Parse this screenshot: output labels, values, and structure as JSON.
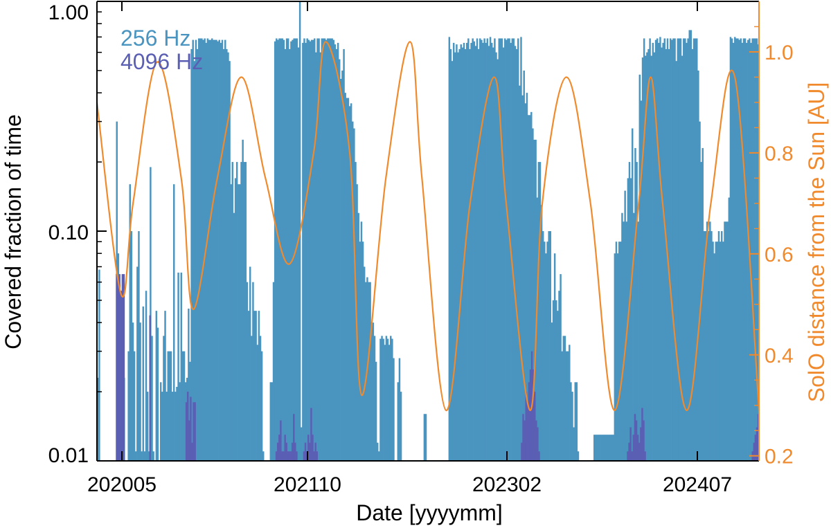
{
  "colors": {
    "series_256": "#4a94c0",
    "series_4096": "#5b5fb4",
    "distance": "#f08a2c",
    "axis": "#000000"
  },
  "chart_data": {
    "type": "bar",
    "xlabel": "Date [yyyymm]",
    "ylabel": "Covered fraction of time",
    "y_scale": "log",
    "ylim": [
      0.01,
      1.0
    ],
    "y_ticks": [
      0.01,
      0.1,
      1.0
    ],
    "y_tick_labels": [
      "0.01",
      "0.10",
      "1.00"
    ],
    "x_ticks": [
      "202005",
      "202110",
      "202302",
      "202407"
    ],
    "x_range": [
      "2020-03",
      "2024-10"
    ],
    "right_axis": {
      "label": "SolO distance from the Sun [AU]",
      "ylim": [
        0.19,
        1.1
      ],
      "ticks": [
        0.2,
        0.4,
        0.6,
        0.8,
        1.0
      ],
      "tick_labels": [
        "0.2",
        "0.4",
        "0.6",
        "0.8",
        "1.0"
      ]
    },
    "legend": {
      "placement": "top-left",
      "entries": [
        "256 Hz",
        "4096 Hz"
      ]
    },
    "series": [
      {
        "name": "256 Hz",
        "kind": "bar",
        "values": [
          0.023,
          0.068,
          0.0,
          0.0,
          0.0,
          0.0,
          0.0,
          0.0,
          0.0,
          0.0,
          0.0,
          0.0,
          0.0,
          0.3,
          0.08,
          0.014,
          0.035,
          0.023,
          0.023,
          0.0,
          0.0,
          0.03,
          0.16,
          0.1,
          0.04,
          0.03,
          0.011,
          0.07,
          0.1,
          0.04,
          0.011,
          0.047,
          0.011,
          0.055,
          0.02,
          0.011,
          0.19,
          0.035,
          0.011,
          0.0,
          0.045,
          0.038,
          0.0,
          0.022,
          0.02,
          0.035,
          0.045,
          0.02,
          0.03,
          0.03,
          0.03,
          0.02,
          0.16,
          0.02,
          0.021,
          0.066,
          0.022,
          0.066,
          0.03,
          0.03,
          0.022,
          0.023,
          0.046,
          0.027,
          0.62,
          0.68,
          0.55,
          0.68,
          0.62,
          0.69,
          0.69,
          0.69,
          0.68,
          0.69,
          0.66,
          0.69,
          0.68,
          0.68,
          0.69,
          0.68,
          0.68,
          0.68,
          0.67,
          0.68,
          0.66,
          0.68,
          0.62,
          0.68,
          0.62,
          0.6,
          0.55,
          0.16,
          0.2,
          0.12,
          0.17,
          0.2,
          0.16,
          0.16,
          0.2,
          0.25,
          0.2,
          0.2,
          0.06,
          0.045,
          0.07,
          0.035,
          0.06,
          0.045,
          0.045,
          0.032,
          0.045,
          0.035,
          0.03,
          0.011,
          0.0,
          0.0,
          0.0,
          0.0,
          0.022,
          0.022,
          0.06,
          0.67,
          0.69,
          0.68,
          0.69,
          0.69,
          0.69,
          0.68,
          0.62,
          0.69,
          0.69,
          0.62,
          0.67,
          0.68,
          0.69,
          0.69,
          0.69,
          0.63,
          1.0,
          0.014,
          0.66,
          0.69,
          0.66,
          0.69,
          0.68,
          0.67,
          0.68,
          0.68,
          0.69,
          0.6,
          0.69,
          0.69,
          0.6,
          0.69,
          0.69,
          0.69,
          0.68,
          0.69,
          0.69,
          0.69,
          0.69,
          0.68,
          0.65,
          0.62,
          0.66,
          0.56,
          0.46,
          0.5,
          0.62,
          0.4,
          0.38,
          0.38,
          0.35,
          0.36,
          0.3,
          0.28,
          0.2,
          0.16,
          0.12,
          0.09,
          0.11,
          0.09,
          0.07,
          0.06,
          0.063,
          0.06,
          0.06,
          0.04,
          0.04,
          0.035,
          0.027,
          0.012,
          0.011,
          0.034,
          0.035,
          0.034,
          0.032,
          0.035,
          0.034,
          0.032,
          0.035,
          0.034,
          0.028,
          0.0,
          0.0,
          0.022,
          0.028,
          0.02,
          0.0,
          0.0,
          0.0,
          0.0,
          0.0,
          0.0,
          0.0,
          0.0,
          0.0,
          0.0,
          0.0,
          0.0,
          0.0,
          0.0,
          0.0,
          0.016,
          0.016,
          0.0,
          0.0,
          0.0,
          0.0,
          0.0,
          0.0,
          0.0,
          0.0,
          0.0,
          0.0,
          0.0,
          0.0,
          0.0,
          0.0,
          0.0,
          0.7,
          0.62,
          0.55,
          0.66,
          0.6,
          0.65,
          0.6,
          0.62,
          0.65,
          0.63,
          0.66,
          0.62,
          0.66,
          0.69,
          0.62,
          0.66,
          0.69,
          0.67,
          0.64,
          0.69,
          0.62,
          0.69,
          0.68,
          0.66,
          0.69,
          0.66,
          0.69,
          0.64,
          0.7,
          0.66,
          0.63,
          0.69,
          0.6,
          0.56,
          0.69,
          0.69,
          0.69,
          0.63,
          0.69,
          0.68,
          0.69,
          0.69,
          0.66,
          0.69,
          0.69,
          0.64,
          0.62,
          0.69,
          0.43,
          0.7,
          0.39,
          0.5,
          0.36,
          0.4,
          0.32,
          0.32,
          0.33,
          0.28,
          0.25,
          0.25,
          0.14,
          0.2,
          0.2,
          0.13,
          0.1,
          0.09,
          0.08,
          0.09,
          0.1,
          0.1,
          0.04,
          0.05,
          0.08,
          0.05,
          0.045,
          0.055,
          0.065,
          0.03,
          0.035,
          0.035,
          0.03,
          0.03,
          0.032,
          0.022,
          0.02,
          0.014,
          0.022,
          0.022,
          0.011,
          0.0,
          0.0,
          0.0,
          0.0,
          0.0,
          0.0,
          0.0,
          0.0,
          0.0,
          0.0,
          0.013,
          0.013,
          0.013,
          0.013,
          0.013,
          0.013,
          0.013,
          0.013,
          0.013,
          0.013,
          0.013,
          0.013,
          0.013,
          0.013,
          0.08,
          0.09,
          0.08,
          0.09,
          0.09,
          0.12,
          0.11,
          0.15,
          0.11,
          0.17,
          0.2,
          0.17,
          0.28,
          0.12,
          0.23,
          0.2,
          0.11,
          0.48,
          0.37,
          0.57,
          0.69,
          0.58,
          0.6,
          0.62,
          0.69,
          0.58,
          0.66,
          0.6,
          0.68,
          0.69,
          0.66,
          0.7,
          0.63,
          0.66,
          0.69,
          0.62,
          0.69,
          0.62,
          0.69,
          0.68,
          0.69,
          0.69,
          0.55,
          0.69,
          0.69,
          0.69,
          0.58,
          0.69,
          0.69,
          0.66,
          0.69,
          0.75,
          0.75,
          0.62,
          0.69,
          0.69,
          0.69,
          0.5,
          0.3,
          0.2,
          0.23,
          0.1,
          0.1,
          0.11,
          0.1,
          0.11,
          0.1,
          0.09,
          0.08,
          0.09,
          0.09,
          0.1,
          0.09,
          0.1,
          0.09,
          0.11,
          0.11,
          0.11,
          0.14,
          0.7,
          0.69,
          0.66,
          0.7,
          0.69,
          0.69,
          0.68,
          0.69,
          0.66,
          0.69,
          0.69,
          0.66,
          0.68,
          0.69,
          0.66,
          0.69,
          0.69,
          0.69,
          0.69,
          0.65
        ]
      },
      {
        "name": "4096 Hz",
        "kind": "bar",
        "values": [
          0.0,
          0.0,
          0.0,
          0.0,
          0.0,
          0.0,
          0.0,
          0.0,
          0.0,
          0.0,
          0.0,
          0.0,
          0.0,
          0.065,
          0.06,
          0.065,
          0.055,
          0.065,
          0.065,
          0.0,
          0.0,
          0.0,
          0.0,
          0.0,
          0.0,
          0.0,
          0.0,
          0.0,
          0.0,
          0.0,
          0.0,
          0.0,
          0.0,
          0.0,
          0.0,
          0.0,
          0.043,
          0.0,
          0.0,
          0.0,
          0.0,
          0.0,
          0.0,
          0.0,
          0.0,
          0.0,
          0.0,
          0.0,
          0.0,
          0.0,
          0.0,
          0.0,
          0.0,
          0.0,
          0.0,
          0.0,
          0.0,
          0.0,
          0.0,
          0.0,
          0.0,
          0.018,
          0.02,
          0.015,
          0.019,
          0.012,
          0.018,
          0.018,
          0.0,
          0.0,
          0.0,
          0.0,
          0.0,
          0.0,
          0.0,
          0.0,
          0.0,
          0.0,
          0.0,
          0.0,
          0.0,
          0.0,
          0.0,
          0.0,
          0.0,
          0.0,
          0.0,
          0.0,
          0.0,
          0.0,
          0.0,
          0.0,
          0.0,
          0.0,
          0.0,
          0.0,
          0.0,
          0.0,
          0.0,
          0.0,
          0.0,
          0.0,
          0.0,
          0.0,
          0.0,
          0.0,
          0.0,
          0.0,
          0.0,
          0.0,
          0.0,
          0.0,
          0.0,
          0.0,
          0.0,
          0.0,
          0.0,
          0.0,
          0.0,
          0.0,
          0.0,
          0.0,
          0.0,
          0.011,
          0.012,
          0.013,
          0.015,
          0.011,
          0.011,
          0.013,
          0.012,
          0.011,
          0.011,
          0.011,
          0.012,
          0.016,
          0.012,
          0.011,
          0.0,
          0.0,
          0.0,
          0.0,
          0.011,
          0.012,
          0.011,
          0.013,
          0.012,
          0.017,
          0.013,
          0.011,
          0.012,
          0.011,
          0.0,
          0.0,
          0.0,
          0.0,
          0.0,
          0.0,
          0.0,
          0.0,
          0.0,
          0.0,
          0.0,
          0.0,
          0.0,
          0.0,
          0.0,
          0.0,
          0.0,
          0.0,
          0.0,
          0.0,
          0.0,
          0.0,
          0.0,
          0.0,
          0.0,
          0.0,
          0.0,
          0.0,
          0.0,
          0.0,
          0.0,
          0.0,
          0.0,
          0.0,
          0.0,
          0.0,
          0.0,
          0.0,
          0.0,
          0.0,
          0.0,
          0.0,
          0.0,
          0.0,
          0.0,
          0.0,
          0.0,
          0.0,
          0.0,
          0.0,
          0.0,
          0.0,
          0.0,
          0.0,
          0.0,
          0.0,
          0.0,
          0.0,
          0.0,
          0.0,
          0.0,
          0.0,
          0.0,
          0.0,
          0.0,
          0.0,
          0.0,
          0.0,
          0.0,
          0.0,
          0.0,
          0.0,
          0.0,
          0.0,
          0.0,
          0.0,
          0.0,
          0.0,
          0.0,
          0.0,
          0.0,
          0.0,
          0.0,
          0.0,
          0.0,
          0.0,
          0.0,
          0.0,
          0.0,
          0.0,
          0.0,
          0.0,
          0.0,
          0.0,
          0.0,
          0.0,
          0.0,
          0.0,
          0.0,
          0.0,
          0.0,
          0.0,
          0.0,
          0.0,
          0.0,
          0.0,
          0.0,
          0.0,
          0.0,
          0.0,
          0.0,
          0.0,
          0.0,
          0.0,
          0.0,
          0.0,
          0.0,
          0.0,
          0.0,
          0.0,
          0.0,
          0.0,
          0.0,
          0.0,
          0.0,
          0.0,
          0.0,
          0.0,
          0.0,
          0.0,
          0.0,
          0.0,
          0.0,
          0.0,
          0.0,
          0.0,
          0.0,
          0.0,
          0.0,
          0.0,
          0.012,
          0.016,
          0.015,
          0.02,
          0.018,
          0.022,
          0.025,
          0.03,
          0.025,
          0.02,
          0.015,
          0.014,
          0.011,
          0.0,
          0.0,
          0.0,
          0.0,
          0.0,
          0.0,
          0.0,
          0.0,
          0.0,
          0.0,
          0.0,
          0.0,
          0.0,
          0.0,
          0.0,
          0.0,
          0.0,
          0.0,
          0.0,
          0.0,
          0.0,
          0.0,
          0.0,
          0.0,
          0.0,
          0.0,
          0.0,
          0.0,
          0.0,
          0.0,
          0.0,
          0.0,
          0.0,
          0.0,
          0.0,
          0.0,
          0.0,
          0.0,
          0.0,
          0.0,
          0.0,
          0.0,
          0.0,
          0.0,
          0.0,
          0.0,
          0.0,
          0.0,
          0.0,
          0.0,
          0.0,
          0.0,
          0.0,
          0.0,
          0.0,
          0.0,
          0.0,
          0.0,
          0.0,
          0.0,
          0.011,
          0.012,
          0.014,
          0.011,
          0.013,
          0.016,
          0.015,
          0.013,
          0.012,
          0.014,
          0.017,
          0.015,
          0.011,
          0.0,
          0.0,
          0.0,
          0.0,
          0.0,
          0.0,
          0.0,
          0.0,
          0.0,
          0.0,
          0.0,
          0.0,
          0.0,
          0.0,
          0.0,
          0.0,
          0.0,
          0.0,
          0.0,
          0.0,
          0.0,
          0.0,
          0.0,
          0.0,
          0.0,
          0.0,
          0.0,
          0.0,
          0.0,
          0.0,
          0.0,
          0.0,
          0.0,
          0.0,
          0.0,
          0.0,
          0.0,
          0.0,
          0.0,
          0.0,
          0.0,
          0.0,
          0.0,
          0.0,
          0.0,
          0.0,
          0.0,
          0.0,
          0.0,
          0.0,
          0.0,
          0.0,
          0.0,
          0.0,
          0.0,
          0.0,
          0.0,
          0.0,
          0.0,
          0.0,
          0.0,
          0.0,
          0.0,
          0.0,
          0.0,
          0.0,
          0.0,
          0.0,
          0.0,
          0.0,
          0.0,
          0.0,
          0.0,
          0.011,
          0.012,
          0.013,
          0.014,
          0.016
        ]
      },
      {
        "name": "SolO distance from the Sun [AU]",
        "kind": "line",
        "axis": "right",
        "x": [
          "2020-03",
          "2020-05",
          "2020-06",
          "2020-08",
          "2020-10",
          "2020-11",
          "2021-01",
          "2021-03",
          "2021-05",
          "2021-07",
          "2021-09",
          "2021-10",
          "2021-12",
          "2022-01",
          "2022-03",
          "2022-05",
          "2022-06",
          "2022-08",
          "2022-10",
          "2022-12",
          "2023-01",
          "2023-03",
          "2023-04",
          "2023-06",
          "2023-08",
          "2023-10",
          "2023-12",
          "2024-01",
          "2024-02",
          "2024-04",
          "2024-06",
          "2024-08",
          "2024-10"
        ],
        "y": [
          0.9,
          0.52,
          0.7,
          0.98,
          0.75,
          0.49,
          0.75,
          0.95,
          0.75,
          0.58,
          0.8,
          1.02,
          0.8,
          0.32,
          0.75,
          1.02,
          0.75,
          0.29,
          0.7,
          0.95,
          0.7,
          0.29,
          0.7,
          0.95,
          0.7,
          0.29,
          0.7,
          0.95,
          0.7,
          0.29,
          0.7,
          0.95,
          0.29
        ]
      }
    ]
  }
}
